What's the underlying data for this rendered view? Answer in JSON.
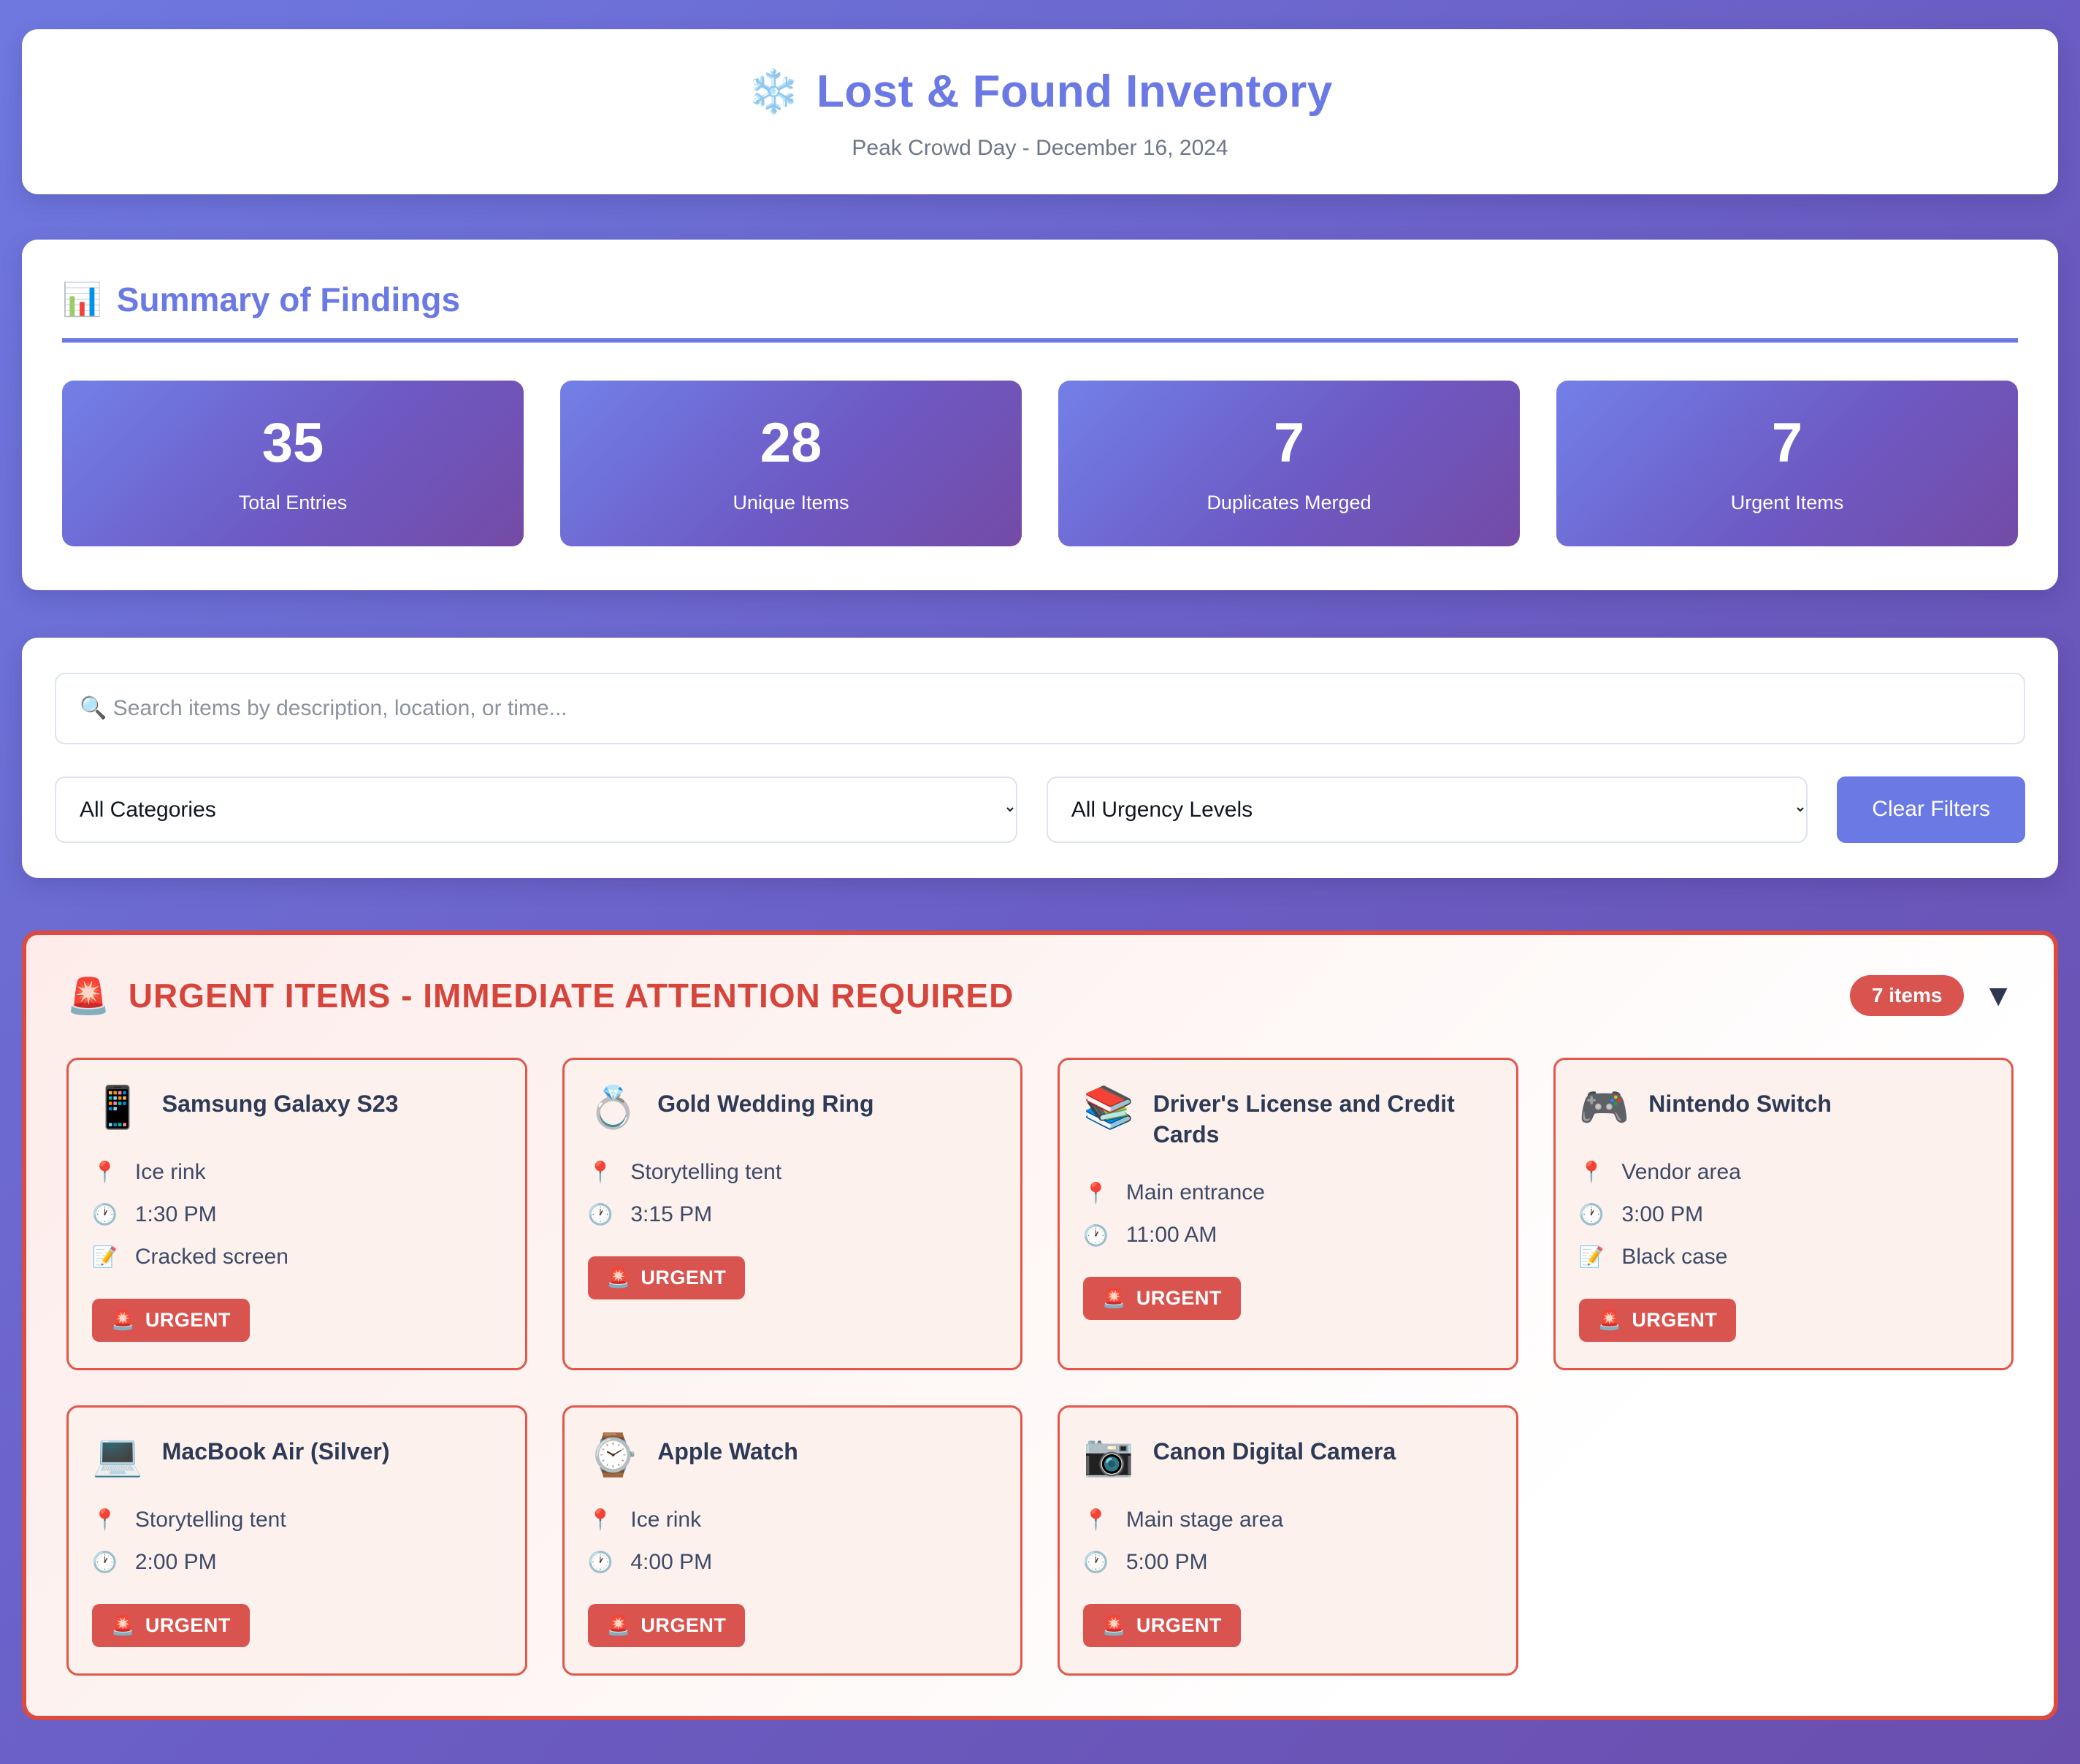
{
  "header": {
    "icon": "❄️",
    "title": "Lost & Found Inventory",
    "subtitle": "Peak Crowd Day - December 16, 2024"
  },
  "summary": {
    "icon": "📊",
    "title": "Summary of Findings",
    "stats": [
      {
        "value": "35",
        "label": "Total Entries"
      },
      {
        "value": "28",
        "label": "Unique Items"
      },
      {
        "value": "7",
        "label": "Duplicates Merged"
      },
      {
        "value": "7",
        "label": "Urgent Items"
      }
    ]
  },
  "filters": {
    "search_placeholder": "🔍 Search items by description, location, or time...",
    "search_value": "",
    "category_selected": "All Categories",
    "urgency_selected": "All Urgency Levels",
    "clear_button_label": "Clear Filters"
  },
  "urgent_section": {
    "icon": "🚨",
    "title": "URGENT ITEMS - IMMEDIATE ATTENTION REQUIRED",
    "count_badge": "7 items",
    "collapse_icon": "▼",
    "detail_icons": {
      "location": "📍",
      "time": "🕐",
      "note": "📝"
    },
    "badge_icon": "🚨",
    "badge_label": "URGENT",
    "items": [
      {
        "icon": "📱",
        "name": "Samsung Galaxy S23",
        "location": "Ice rink",
        "time": "1:30 PM",
        "note": "Cracked screen"
      },
      {
        "icon": "💍",
        "name": "Gold Wedding Ring",
        "location": "Storytelling tent",
        "time": "3:15 PM",
        "note": ""
      },
      {
        "icon": "📚",
        "name": "Driver's License and Credit Cards",
        "location": "Main entrance",
        "time": "11:00 AM",
        "note": ""
      },
      {
        "icon": "🎮",
        "name": "Nintendo Switch",
        "location": "Vendor area",
        "time": "3:00 PM",
        "note": "Black case"
      },
      {
        "icon": "💻",
        "name": "MacBook Air (Silver)",
        "location": "Storytelling tent",
        "time": "2:00 PM",
        "note": ""
      },
      {
        "icon": "⌚",
        "name": "Apple Watch",
        "location": "Ice rink",
        "time": "4:00 PM",
        "note": ""
      },
      {
        "icon": "📷",
        "name": "Canon Digital Camera",
        "location": "Main stage area",
        "time": "5:00 PM",
        "note": ""
      }
    ]
  },
  "colors": {
    "accent_purple": "#6b79e4",
    "background_gradient_start": "#6e79e0",
    "background_gradient_end": "#6a4fae",
    "urgent_red_border": "#dd4b3e",
    "urgent_red_text": "#d6453c",
    "badge_red": "#d9534f",
    "card_pink_bg": "#fdf1ee",
    "title_navy": "#2d3a56"
  }
}
